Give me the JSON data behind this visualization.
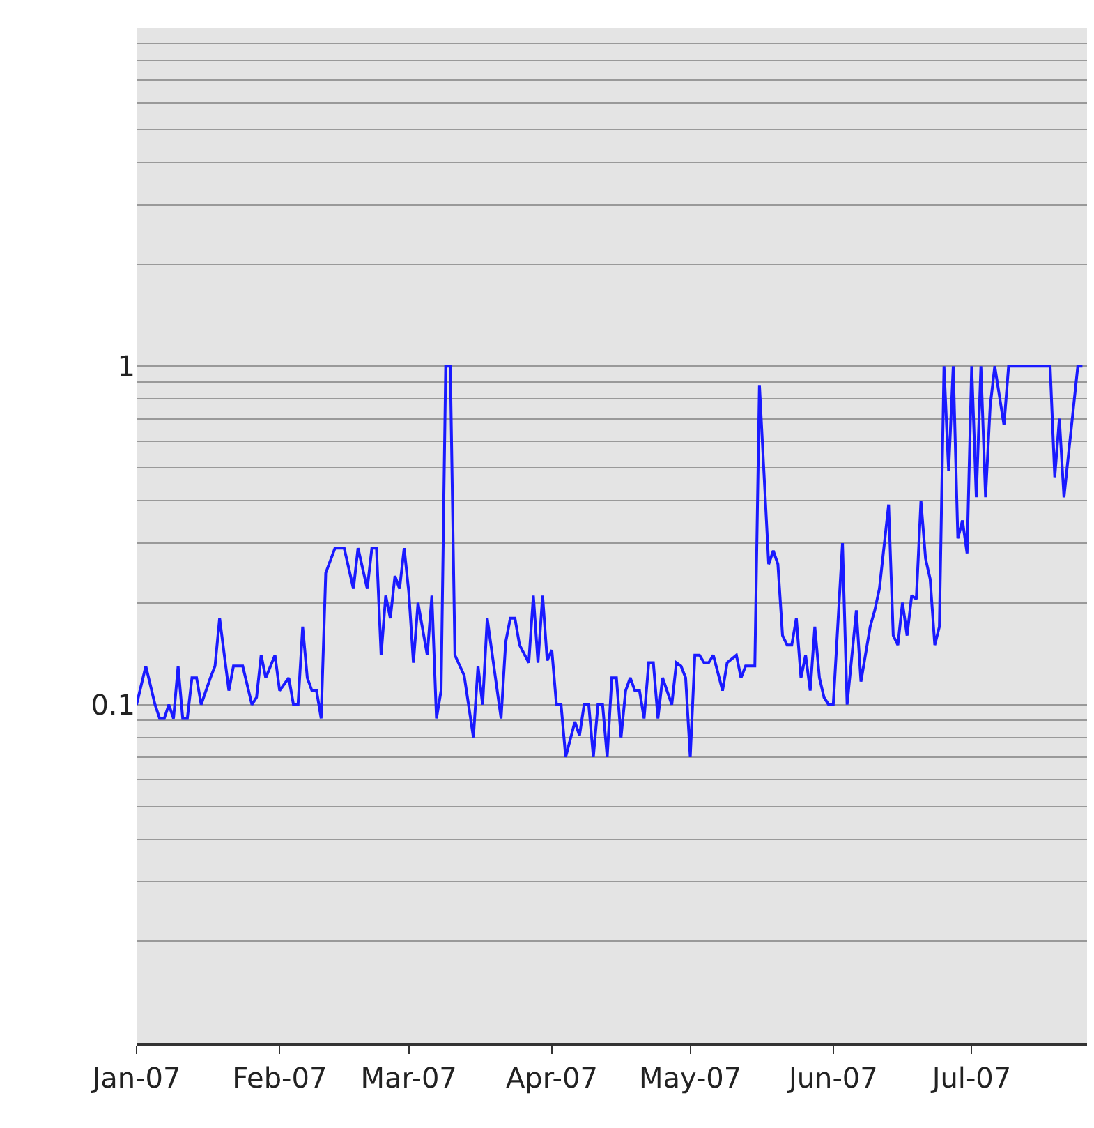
{
  "chart_data": {
    "type": "line",
    "log": true,
    "grid": "y",
    "marker": "none",
    "line_style": "solid",
    "xlim": [
      "2007-01-01",
      "2007-07-26"
    ],
    "xticks": [
      {
        "value": "2007-01-01",
        "label": "Jan-07"
      },
      {
        "value": "2007-02-01",
        "label": "Feb-07"
      },
      {
        "value": "2007-03-01",
        "label": "Mar-07"
      },
      {
        "value": "2007-04-01",
        "label": "Apr-07"
      },
      {
        "value": "2007-05-01",
        "label": "May-07"
      },
      {
        "value": "2007-06-01",
        "label": "Jun-07"
      },
      {
        "value": "2007-07-01",
        "label": "Jul-07"
      }
    ],
    "ylim": [
      0.01,
      10
    ],
    "yticks": [
      {
        "value": 0.01,
        "label": null
      },
      {
        "value": 0.02,
        "label": null
      },
      {
        "value": 0.03,
        "label": null
      },
      {
        "value": 0.04,
        "label": null
      },
      {
        "value": 0.05,
        "label": null
      },
      {
        "value": 0.06,
        "label": null
      },
      {
        "value": 0.07,
        "label": null
      },
      {
        "value": 0.08,
        "label": null
      },
      {
        "value": 0.09,
        "label": null
      },
      0.1,
      {
        "value": 0.2,
        "label": null
      },
      {
        "value": 0.3,
        "label": null
      },
      {
        "value": 0.4,
        "label": null
      },
      {
        "value": 0.5,
        "label": null
      },
      {
        "value": 0.6,
        "label": null
      },
      {
        "value": 0.7,
        "label": null
      },
      {
        "value": 0.8,
        "label": null
      },
      {
        "value": 0.9,
        "label": null
      },
      1,
      {
        "value": 2,
        "label": null
      },
      {
        "value": 3,
        "label": null
      },
      {
        "value": 4,
        "label": null
      },
      {
        "value": 5,
        "label": null
      },
      {
        "value": 6,
        "label": null
      },
      {
        "value": 7,
        "label": null
      },
      {
        "value": 8,
        "label": null
      },
      {
        "value": 9,
        "label": null
      },
      {
        "value": 10,
        "label": null
      }
    ],
    "series": [
      {
        "color": "#1a1aff",
        "x": [
          "2007-01-01",
          "2007-01-03",
          "2007-01-05",
          "2007-01-06",
          "2007-01-07",
          "2007-01-08",
          "2007-01-09",
          "2007-01-10",
          "2007-01-11",
          "2007-01-12",
          "2007-01-13",
          "2007-01-14",
          "2007-01-15",
          "2007-01-17",
          "2007-01-18",
          "2007-01-19",
          "2007-01-21",
          "2007-01-22",
          "2007-01-24",
          "2007-01-26",
          "2007-01-27",
          "2007-01-28",
          "2007-01-29",
          "2007-01-31",
          "2007-02-01",
          "2007-02-03",
          "2007-02-04",
          "2007-02-05",
          "2007-02-06",
          "2007-02-07",
          "2007-02-08",
          "2007-02-09",
          "2007-02-10",
          "2007-02-11",
          "2007-02-13",
          "2007-02-15",
          "2007-02-17",
          "2007-02-18",
          "2007-02-20",
          "2007-02-21",
          "2007-02-22",
          "2007-02-23",
          "2007-02-24",
          "2007-02-25",
          "2007-02-26",
          "2007-02-27",
          "2007-02-28",
          "2007-03-01",
          "2007-03-02",
          "2007-03-03",
          "2007-03-05",
          "2007-03-06",
          "2007-03-07",
          "2007-03-08",
          "2007-03-09",
          "2007-03-10",
          "2007-03-11",
          "2007-03-13",
          "2007-03-15",
          "2007-03-16",
          "2007-03-17",
          "2007-03-18",
          "2007-03-21",
          "2007-03-22",
          "2007-03-23",
          "2007-03-24",
          "2007-03-25",
          "2007-03-27",
          "2007-03-28",
          "2007-03-29",
          "2007-03-30",
          "2007-03-31",
          "2007-04-01",
          "2007-04-02",
          "2007-04-03",
          "2007-04-04",
          "2007-04-06",
          "2007-04-07",
          "2007-04-08",
          "2007-04-09",
          "2007-04-10",
          "2007-04-11",
          "2007-04-12",
          "2007-04-13",
          "2007-04-14",
          "2007-04-15",
          "2007-04-16",
          "2007-04-17",
          "2007-04-18",
          "2007-04-19",
          "2007-04-20",
          "2007-04-21",
          "2007-04-22",
          "2007-04-23",
          "2007-04-24",
          "2007-04-25",
          "2007-04-27",
          "2007-04-28",
          "2007-04-29",
          "2007-04-30",
          "2007-05-01",
          "2007-05-02",
          "2007-05-03",
          "2007-05-04",
          "2007-05-05",
          "2007-05-06",
          "2007-05-08",
          "2007-05-09",
          "2007-05-11",
          "2007-05-12",
          "2007-05-13",
          "2007-05-15",
          "2007-05-16",
          "2007-05-18",
          "2007-05-19",
          "2007-05-20",
          "2007-05-21",
          "2007-05-22",
          "2007-05-23",
          "2007-05-24",
          "2007-05-25",
          "2007-05-26",
          "2007-05-27",
          "2007-05-28",
          "2007-05-29",
          "2007-05-30",
          "2007-05-31",
          "2007-06-01",
          "2007-06-03",
          "2007-06-04",
          "2007-06-06",
          "2007-06-07",
          "2007-06-09",
          "2007-06-10",
          "2007-06-11",
          "2007-06-13",
          "2007-06-14",
          "2007-06-15",
          "2007-06-16",
          "2007-06-17",
          "2007-06-18",
          "2007-06-19",
          "2007-06-20",
          "2007-06-21",
          "2007-06-22",
          "2007-06-23",
          "2007-06-24",
          "2007-06-25",
          "2007-06-26",
          "2007-06-27",
          "2007-06-28",
          "2007-06-29",
          "2007-06-30",
          "2007-07-01",
          "2007-07-02",
          "2007-07-03",
          "2007-07-04",
          "2007-07-05",
          "2007-07-06",
          "2007-07-08",
          "2007-07-09",
          "2007-07-18",
          "2007-07-19",
          "2007-07-20",
          "2007-07-21",
          "2007-07-24",
          "2007-07-25"
        ],
        "values": [
          0.1,
          0.13,
          0.1,
          0.091,
          0.091,
          0.1,
          0.091,
          0.13,
          0.091,
          0.091,
          0.12,
          0.12,
          0.1,
          0.12,
          0.13,
          0.18,
          0.11,
          0.13,
          0.13,
          0.1,
          0.105,
          0.14,
          0.12,
          0.14,
          0.11,
          0.12,
          0.1,
          0.1,
          0.17,
          0.12,
          0.11,
          0.11,
          0.091,
          0.245,
          0.29,
          0.29,
          0.22,
          0.29,
          0.22,
          0.29,
          0.29,
          0.14,
          0.21,
          0.18,
          0.24,
          0.22,
          0.29,
          0.215,
          0.133,
          0.2,
          0.14,
          0.21,
          0.091,
          0.11,
          1,
          1,
          0.14,
          0.122,
          0.08,
          0.13,
          0.1,
          0.18,
          0.091,
          0.153,
          0.18,
          0.18,
          0.15,
          0.133,
          0.21,
          0.133,
          0.21,
          0.135,
          0.145,
          0.1,
          0.1,
          0.07,
          0.089,
          0.081,
          0.1,
          0.1,
          0.07,
          0.1,
          0.1,
          0.07,
          0.12,
          0.12,
          0.08,
          0.11,
          0.12,
          0.11,
          0.11,
          0.091,
          0.133,
          0.133,
          0.091,
          0.12,
          0.1,
          0.133,
          0.13,
          0.12,
          0.07,
          0.14,
          0.14,
          0.133,
          0.133,
          0.14,
          0.11,
          0.133,
          0.14,
          0.12,
          0.13,
          0.13,
          0.88,
          0.26,
          0.285,
          0.26,
          0.16,
          0.15,
          0.15,
          0.18,
          0.12,
          0.14,
          0.11,
          0.17,
          0.12,
          0.105,
          0.1,
          0.1,
          0.3,
          0.1,
          0.19,
          0.117,
          0.17,
          0.19,
          0.22,
          0.39,
          0.16,
          0.15,
          0.2,
          0.16,
          0.21,
          0.205,
          0.4,
          0.27,
          0.235,
          0.15,
          0.17,
          1,
          0.49,
          1,
          0.31,
          0.35,
          0.28,
          1,
          0.41,
          1,
          0.41,
          0.76,
          1,
          0.67,
          1,
          1,
          0.47,
          0.7,
          0.41,
          1,
          1
        ]
      }
    ]
  }
}
